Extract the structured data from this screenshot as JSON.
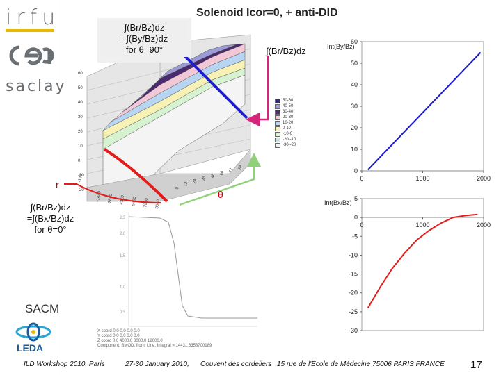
{
  "header": {
    "title": "Solenoid Icor=0, + anti-DID",
    "logo_irfu": "irfu",
    "logo_cea": "cea",
    "logo_saclay": "saclay"
  },
  "annotations": {
    "top_line1": "∫(Br/Bz)dz",
    "top_line2": "=∫(By/Bz)dz",
    "top_line3": "for θ=90°",
    "left_line1": "∫(Br/Bz)dz",
    "left_line2": "=∫(Bx/Bz)dz",
    "left_line3": "for θ=0°",
    "right_label": "∫(Br/Bz)dz",
    "r_axis": "r",
    "theta_axis": "θ"
  },
  "surface_plot": {
    "y_ticks": [
      "60",
      "50",
      "40",
      "30",
      "20",
      "10",
      "0",
      "-10",
      "-20"
    ],
    "x_ticks_r": [
      "-130",
      "-1440",
      "2880",
      "4320",
      "5760",
      "7200",
      "8640"
    ],
    "x_ticks_theta": [
      "0",
      "12",
      "24",
      "36",
      "48",
      "60",
      "72",
      "84"
    ],
    "legend": [
      "50-60",
      "40-50",
      "30-40",
      "20-30",
      "10-20",
      "0-10",
      "-10-0",
      "-20--10",
      "-30--20"
    ],
    "legend_colors": [
      "#2d2a8a",
      "#9b9bd6",
      "#4b2a6e",
      "#f1c8d6",
      "#b7d4f1",
      "#f7f1b6",
      "#d7f2d1",
      "#c6e7e0",
      "#f4f4f4"
    ]
  },
  "chart_data": [
    {
      "type": "line",
      "title": "",
      "ylabel": "Int(By/Bz)",
      "xlabel": "",
      "x_ticks": [
        "0",
        "1000",
        "2000"
      ],
      "y_ticks": [
        "0",
        "10",
        "20",
        "30",
        "40",
        "50",
        "60"
      ],
      "xlim": [
        0,
        2000
      ],
      "ylim": [
        0,
        60
      ],
      "series": [
        {
          "color": "#1a1ad6",
          "x": [
            100,
            1950
          ],
          "y": [
            0.5,
            55
          ]
        }
      ]
    },
    {
      "type": "line",
      "title": "",
      "ylabel": "Int(Bx/Bz)",
      "xlabel": "",
      "x_ticks": [
        "0",
        "1000",
        "2000"
      ],
      "y_ticks": [
        "5",
        "0",
        "-5",
        "-10",
        "-15",
        "-20",
        "-25",
        "-30"
      ],
      "xlim": [
        0,
        2000
      ],
      "ylim": [
        -30,
        5
      ],
      "series": [
        {
          "color": "#e31b1b",
          "x": [
            100,
            300,
            500,
            700,
            900,
            1100,
            1300,
            1500,
            1700,
            1900
          ],
          "y": [
            -24,
            -18.5,
            -13.5,
            -9.5,
            -6,
            -3.5,
            -1.5,
            0,
            0.5,
            0.8
          ]
        }
      ]
    },
    {
      "type": "line",
      "title": "",
      "y_ticks": [
        "2.5",
        "2.0",
        "1.5",
        "1.0",
        "0.5"
      ],
      "series": [
        {
          "color": "#999999",
          "note": "faded background plot"
        }
      ]
    }
  ],
  "component_info": {
    "row1": "X coord  0.0   0.0   0.0   0.0",
    "row2": "Y coord  0.0   0.0   0.0   0.0",
    "row3": "Z coord  0.0   4000.0   8000.0   12000.0",
    "row4": "Component: BMOD, from: Line, Integral = 14431.6358700189"
  },
  "footer": {
    "sacm": "SACM",
    "leda": "LEDA",
    "workshop": "ILD Workshop 2010, Paris",
    "date": "27-30 January 2010,",
    "venue": "Couvent des cordeliers",
    "address": "15 rue de l'École de Médecine 75006 PARIS FRANCE",
    "page": "17"
  }
}
